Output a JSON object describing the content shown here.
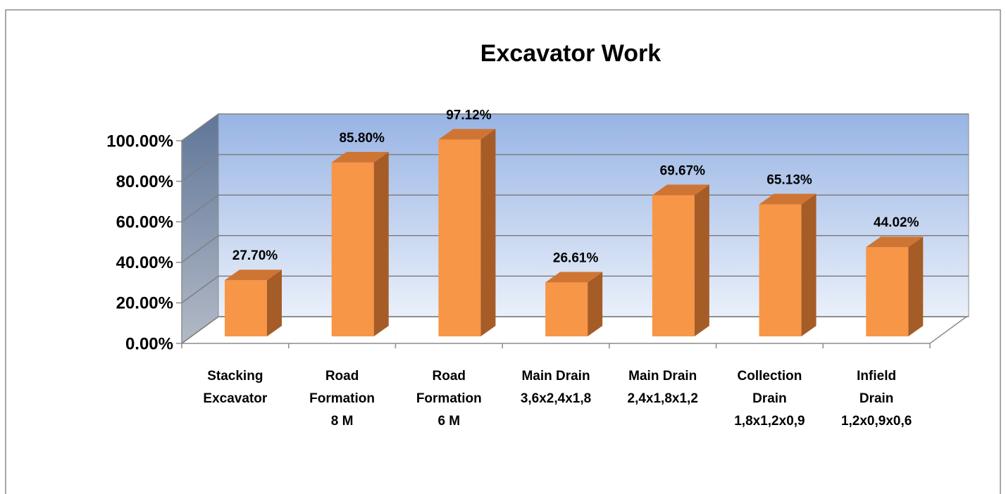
{
  "chart_data": {
    "type": "bar3d",
    "title": "Excavator Work",
    "categories": [
      "Stacking\nExcavator",
      "Road\nFormation\n8 M",
      "Road\nFormation\n6 M",
      "Main Drain\n3,6x2,4x1,8",
      "Main Drain\n2,4x1,8x1,2",
      "Collection\nDrain\n1,8x1,2x0,9",
      "Infield\nDrain\n1,2x0,9x0,6"
    ],
    "values": [
      27.7,
      85.8,
      97.12,
      26.61,
      69.67,
      65.13,
      44.02
    ],
    "value_labels": [
      "27.70%",
      "85.80%",
      "97.12%",
      "26.61%",
      "69.67%",
      "65.13%",
      "44.02%"
    ],
    "color": "#f79646",
    "ylim": [
      0,
      100
    ],
    "yticks": [
      {
        "value": 0,
        "label": "0.00%"
      },
      {
        "value": 20,
        "label": "20.00%"
      },
      {
        "value": 40,
        "label": "40.00%"
      },
      {
        "value": 60,
        "label": "60.00%"
      },
      {
        "value": 80,
        "label": "80.00%"
      },
      {
        "value": 100,
        "label": "100.00%"
      }
    ],
    "grid": true
  }
}
